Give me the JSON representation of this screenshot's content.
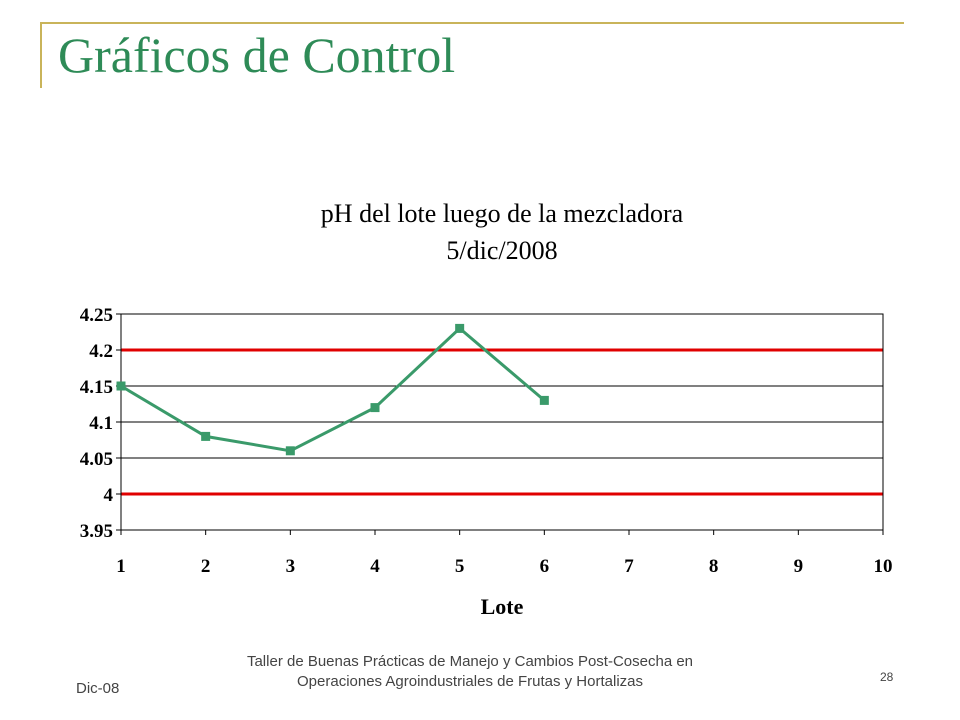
{
  "slide": {
    "title": "Gráficos de Control",
    "footer_left": "Dic-08",
    "footer_center_line1": "Taller de Buenas Prácticas de Manejo y Cambios Post-Cosecha en",
    "footer_center_line2": "Operaciones Agroindustriales de Frutas y Hortalizas",
    "page_number": "28"
  },
  "chart_data": {
    "type": "line",
    "title": "pH del lote luego de la mezcladora",
    "subtitle": "5/dic/2008",
    "xlabel": "Lote",
    "ylabel": "",
    "x_ticks": [
      "1",
      "2",
      "3",
      "4",
      "5",
      "6",
      "7",
      "8",
      "9",
      "10"
    ],
    "xlim": [
      1,
      10
    ],
    "y_ticks": [
      "4.25",
      "4.2",
      "4.15",
      "4.1",
      "4.05",
      "4",
      "3.95"
    ],
    "y_tick_values": [
      4.25,
      4.2,
      4.15,
      4.1,
      4.05,
      4.0,
      3.95
    ],
    "ylim": [
      3.95,
      4.25
    ],
    "grid": true,
    "series": [
      {
        "x": [
          1,
          2,
          3,
          4,
          5,
          6
        ],
        "y": [
          4.15,
          4.08,
          4.06,
          4.12,
          4.23,
          4.13
        ],
        "color": "#3a9a6a",
        "marker": "square"
      }
    ],
    "control_limits": [
      {
        "value": 4.2,
        "color": "#e00000"
      },
      {
        "value": 4.0,
        "color": "#e00000"
      }
    ]
  }
}
